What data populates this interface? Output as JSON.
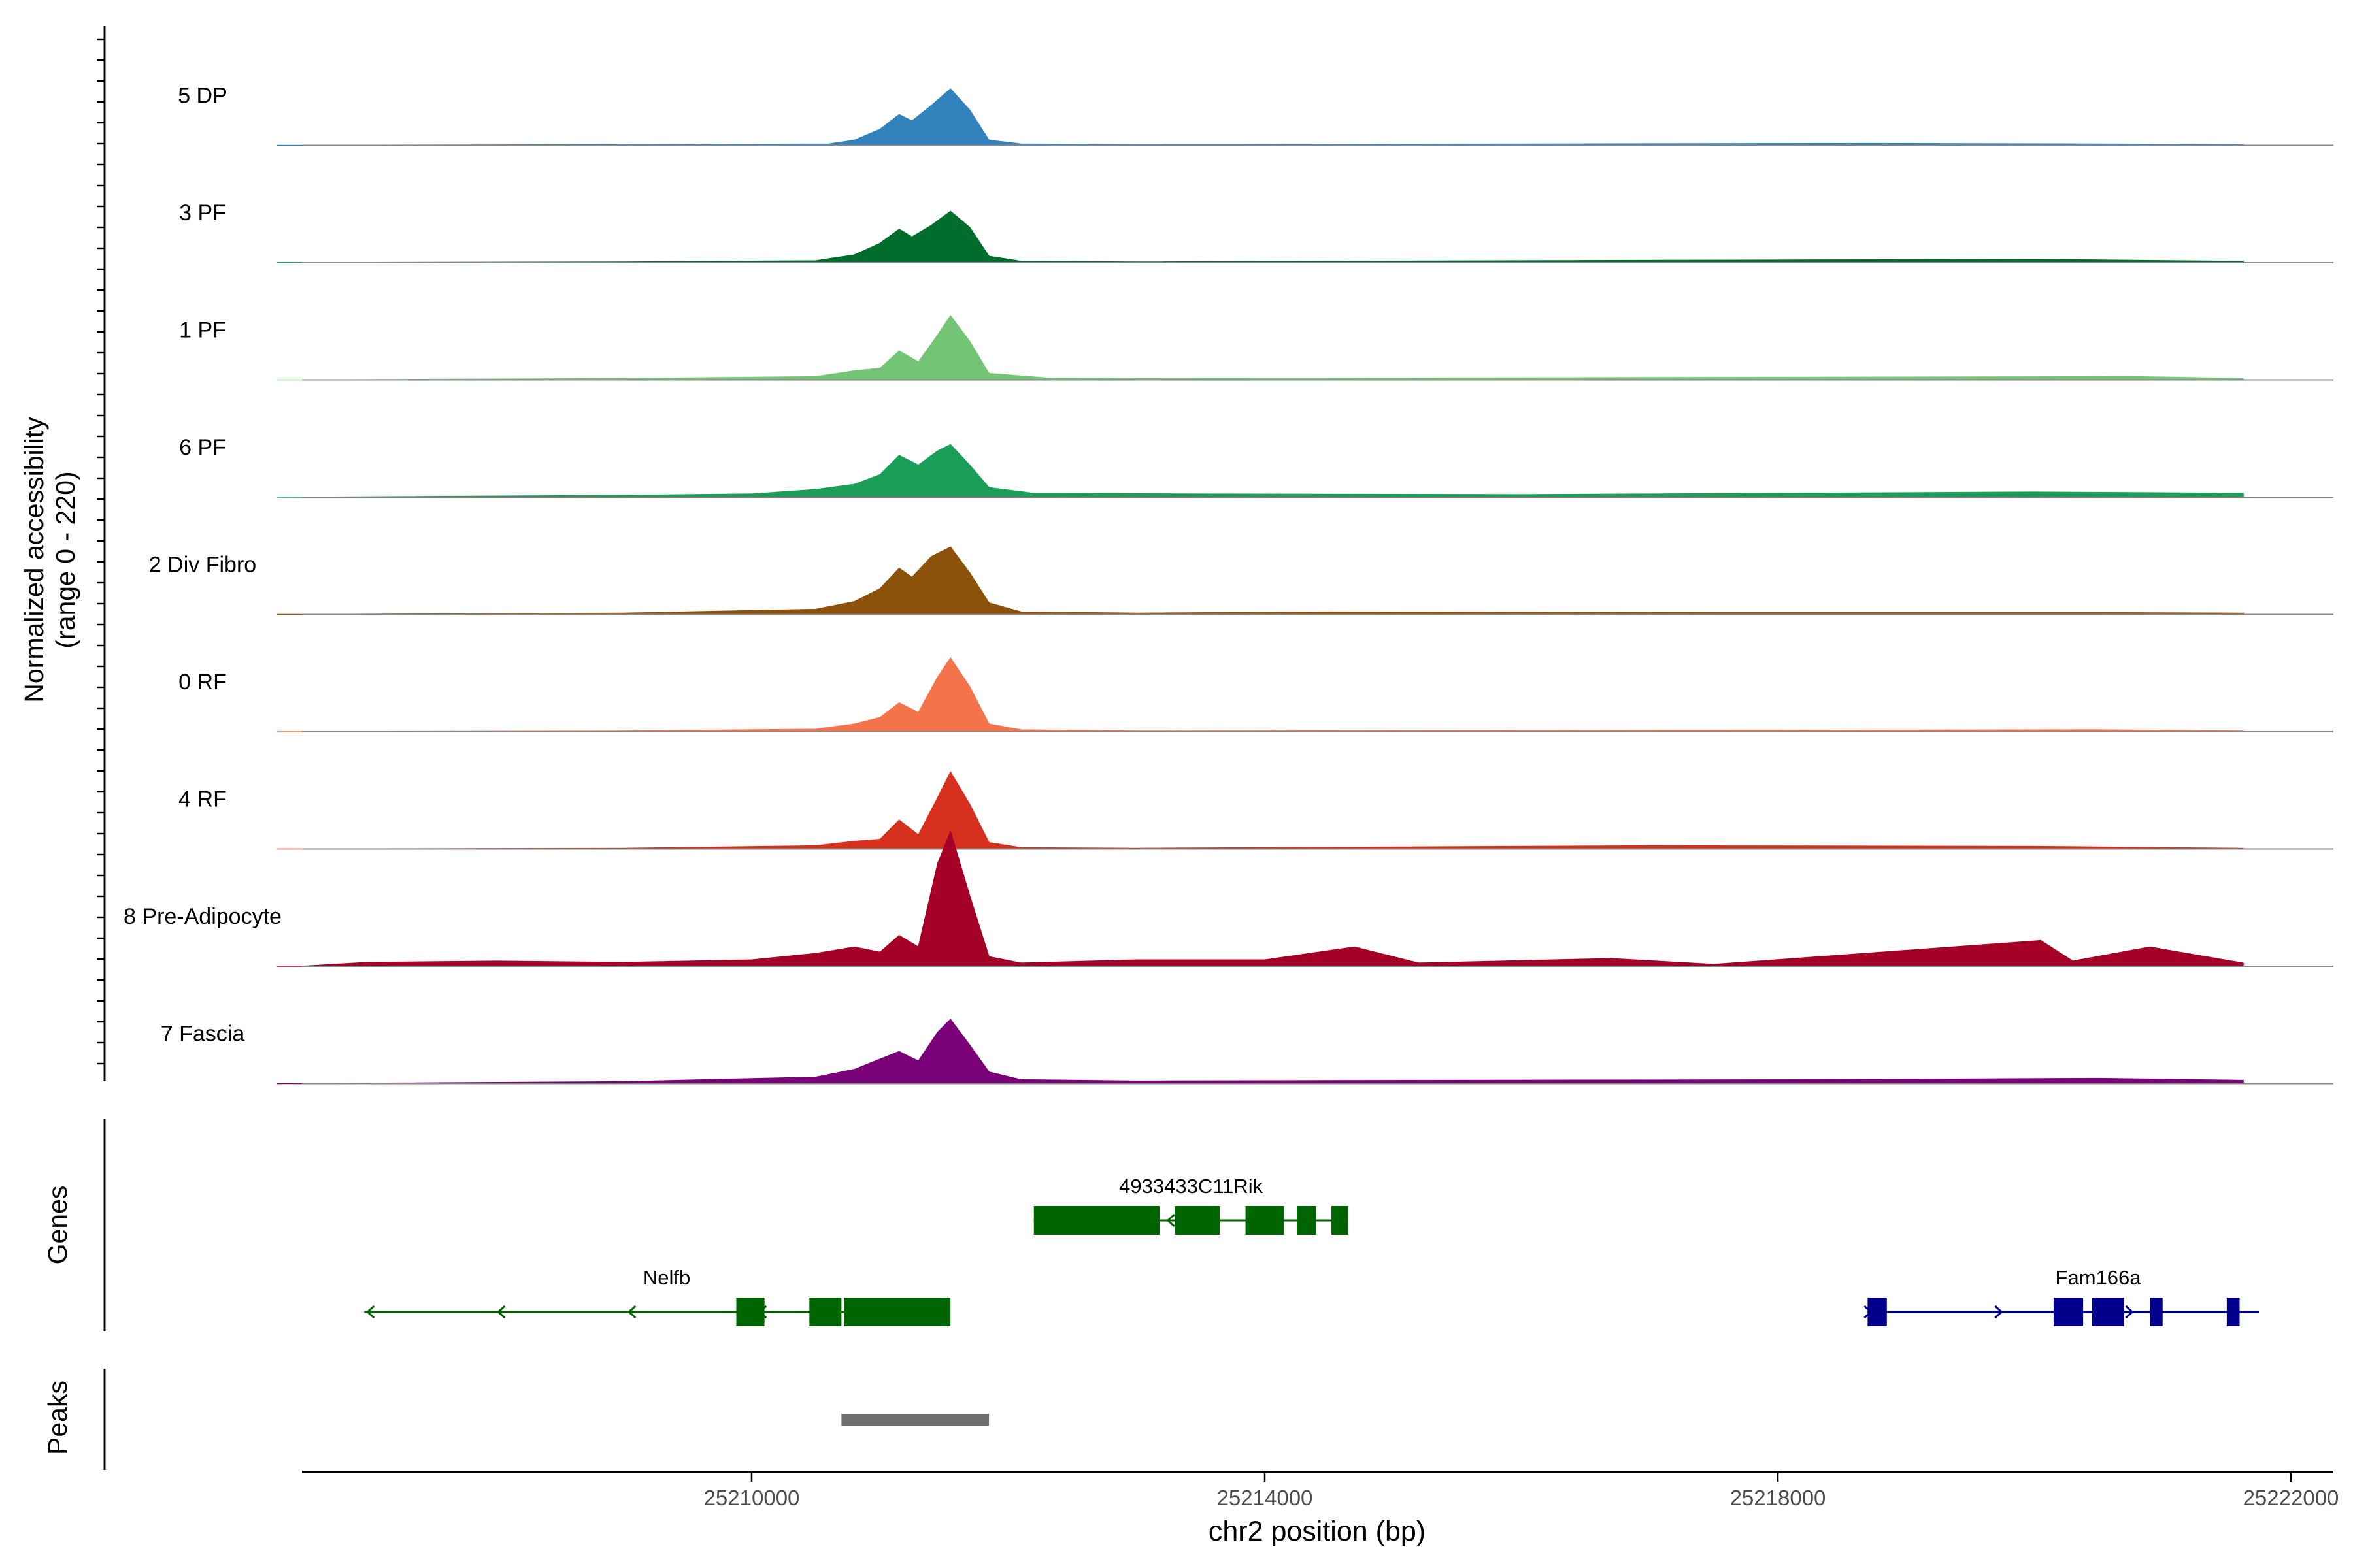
{
  "chart_data": {
    "type": "area",
    "title": "",
    "ylabel": "Normalized accessibility",
    "ylabel_range": "(range 0 - 220)",
    "xlabel": "chr2 position (bp)",
    "ylim": [
      0,
      220
    ],
    "xlim": [
      25206300,
      25222300
    ],
    "x_ticks": [
      25210000,
      25214000,
      25218000,
      25222000
    ],
    "x_tick_labels": [
      "25210000",
      "25214000",
      "25218000",
      "25222000"
    ],
    "tracks": [
      {
        "name": "5 DP",
        "color": "#3182BD",
        "profile": [
          [
            25206300,
            0
          ],
          [
            25209000,
            1
          ],
          [
            25210600,
            2
          ],
          [
            25210800,
            8
          ],
          [
            25211000,
            25
          ],
          [
            25211150,
            48
          ],
          [
            25211250,
            38
          ],
          [
            25211400,
            62
          ],
          [
            25211550,
            88
          ],
          [
            25211700,
            55
          ],
          [
            25211850,
            8
          ],
          [
            25212100,
            2
          ],
          [
            25213000,
            1
          ],
          [
            25218700,
            3
          ],
          [
            25220500,
            2
          ],
          [
            25221800,
            1
          ]
        ]
      },
      {
        "name": "3 PF",
        "color": "#006D2C",
        "profile": [
          [
            25206300,
            0
          ],
          [
            25209000,
            1
          ],
          [
            25210500,
            3
          ],
          [
            25210800,
            12
          ],
          [
            25211000,
            30
          ],
          [
            25211150,
            52
          ],
          [
            25211250,
            40
          ],
          [
            25211400,
            58
          ],
          [
            25211550,
            80
          ],
          [
            25211700,
            55
          ],
          [
            25211850,
            10
          ],
          [
            25212100,
            2
          ],
          [
            25213000,
            1
          ],
          [
            25216000,
            3
          ],
          [
            25220000,
            5
          ],
          [
            25221800,
            2
          ]
        ]
      },
      {
        "name": "1 PF",
        "color": "#74C476",
        "profile": [
          [
            25206300,
            0
          ],
          [
            25209000,
            2
          ],
          [
            25210500,
            5
          ],
          [
            25210800,
            14
          ],
          [
            25211000,
            18
          ],
          [
            25211150,
            45
          ],
          [
            25211300,
            28
          ],
          [
            25211450,
            70
          ],
          [
            25211550,
            100
          ],
          [
            25211700,
            60
          ],
          [
            25211850,
            10
          ],
          [
            25212300,
            3
          ],
          [
            25213000,
            2
          ],
          [
            25220800,
            5
          ],
          [
            25221800,
            2
          ]
        ]
      },
      {
        "name": "6 PF",
        "color": "#1B9E57",
        "profile": [
          [
            25206300,
            0
          ],
          [
            25209000,
            3
          ],
          [
            25210000,
            5
          ],
          [
            25210500,
            12
          ],
          [
            25210800,
            20
          ],
          [
            25211000,
            35
          ],
          [
            25211150,
            65
          ],
          [
            25211300,
            50
          ],
          [
            25211450,
            72
          ],
          [
            25211550,
            82
          ],
          [
            25211700,
            50
          ],
          [
            25211850,
            15
          ],
          [
            25212200,
            6
          ],
          [
            25213500,
            5
          ],
          [
            25216000,
            4
          ],
          [
            25220000,
            8
          ],
          [
            25221800,
            6
          ]
        ]
      },
      {
        "name": "2 Div Fibro",
        "color": "#8C510A",
        "profile": [
          [
            25206300,
            0
          ],
          [
            25209000,
            2
          ],
          [
            25210500,
            8
          ],
          [
            25210800,
            20
          ],
          [
            25211000,
            40
          ],
          [
            25211150,
            72
          ],
          [
            25211250,
            58
          ],
          [
            25211400,
            90
          ],
          [
            25211550,
            105
          ],
          [
            25211700,
            65
          ],
          [
            25211850,
            18
          ],
          [
            25212100,
            4
          ],
          [
            25213000,
            2
          ],
          [
            25214500,
            4
          ],
          [
            25217500,
            3
          ],
          [
            25220500,
            3
          ],
          [
            25221800,
            2
          ]
        ]
      },
      {
        "name": "0 RF",
        "color": "#F4734A",
        "profile": [
          [
            25206300,
            0
          ],
          [
            25209000,
            1
          ],
          [
            25210500,
            4
          ],
          [
            25210800,
            12
          ],
          [
            25211000,
            22
          ],
          [
            25211150,
            45
          ],
          [
            25211300,
            30
          ],
          [
            25211450,
            85
          ],
          [
            25211550,
            115
          ],
          [
            25211700,
            70
          ],
          [
            25211850,
            12
          ],
          [
            25212100,
            3
          ],
          [
            25213000,
            1
          ],
          [
            25218000,
            2
          ],
          [
            25220500,
            3
          ],
          [
            25221800,
            1
          ]
        ]
      },
      {
        "name": "4 RF",
        "color": "#D7301F",
        "profile": [
          [
            25206300,
            0
          ],
          [
            25209000,
            1
          ],
          [
            25210500,
            5
          ],
          [
            25210800,
            12
          ],
          [
            25211000,
            15
          ],
          [
            25211150,
            45
          ],
          [
            25211300,
            22
          ],
          [
            25211450,
            80
          ],
          [
            25211550,
            120
          ],
          [
            25211700,
            70
          ],
          [
            25211850,
            10
          ],
          [
            25212100,
            2
          ],
          [
            25213000,
            1
          ],
          [
            25217000,
            5
          ],
          [
            25220000,
            4
          ],
          [
            25221800,
            1
          ]
        ]
      },
      {
        "name": "8 Pre-Adipocyte",
        "color": "#A50026",
        "profile": [
          [
            25206300,
            0
          ],
          [
            25207000,
            6
          ],
          [
            25208000,
            8
          ],
          [
            25209000,
            6
          ],
          [
            25210000,
            10
          ],
          [
            25210500,
            20
          ],
          [
            25210800,
            30
          ],
          [
            25211000,
            22
          ],
          [
            25211150,
            48
          ],
          [
            25211300,
            30
          ],
          [
            25211450,
            160
          ],
          [
            25211550,
            210
          ],
          [
            25211700,
            110
          ],
          [
            25211850,
            15
          ],
          [
            25212100,
            5
          ],
          [
            25213000,
            10
          ],
          [
            25214000,
            10
          ],
          [
            25214700,
            30
          ],
          [
            25215200,
            5
          ],
          [
            25216700,
            12
          ],
          [
            25217500,
            3
          ],
          [
            25220050,
            40
          ],
          [
            25220300,
            8
          ],
          [
            25220900,
            30
          ],
          [
            25221800,
            5
          ]
        ]
      },
      {
        "name": "7 Fascia",
        "color": "#7A0177",
        "profile": [
          [
            25206300,
            0
          ],
          [
            25209000,
            3
          ],
          [
            25210500,
            10
          ],
          [
            25210800,
            22
          ],
          [
            25211000,
            38
          ],
          [
            25211150,
            50
          ],
          [
            25211300,
            35
          ],
          [
            25211450,
            80
          ],
          [
            25211550,
            100
          ],
          [
            25211700,
            60
          ],
          [
            25211850,
            18
          ],
          [
            25212100,
            6
          ],
          [
            25213000,
            4
          ],
          [
            25215500,
            5
          ],
          [
            25218500,
            6
          ],
          [
            25220500,
            8
          ],
          [
            25221800,
            5
          ]
        ]
      }
    ],
    "genes": [
      {
        "name": "4933433C11Rik",
        "strand": "-",
        "color": "#006400",
        "start": 25212200,
        "end": 25214650,
        "exons": [
          [
            25212200,
            25213180
          ],
          [
            25213300,
            25213650
          ],
          [
            25213850,
            25214150
          ],
          [
            25214250,
            25214400
          ],
          [
            25214520,
            25214650
          ]
        ]
      },
      {
        "name": "Nelfb",
        "strand": "-",
        "color": "#006400",
        "start": 25206980,
        "end": 25211550,
        "exons": [
          [
            25209880,
            25210100
          ],
          [
            25210450,
            25210700
          ],
          [
            25210720,
            25211550
          ]
        ]
      },
      {
        "name": "Fam166a",
        "strand": "+",
        "color": "#00008B",
        "start": 25218700,
        "end": 25221750,
        "exons": [
          [
            25218700,
            25218850
          ],
          [
            25220150,
            25220380
          ],
          [
            25220450,
            25220700
          ],
          [
            25220900,
            25221000
          ],
          [
            25221500,
            25221600
          ]
        ]
      }
    ],
    "peaks": [
      {
        "start": 25210700,
        "end": 25211850,
        "color": "#6E6E6E"
      }
    ],
    "panel_labels": {
      "genes": "Genes",
      "peaks": "Peaks"
    }
  }
}
